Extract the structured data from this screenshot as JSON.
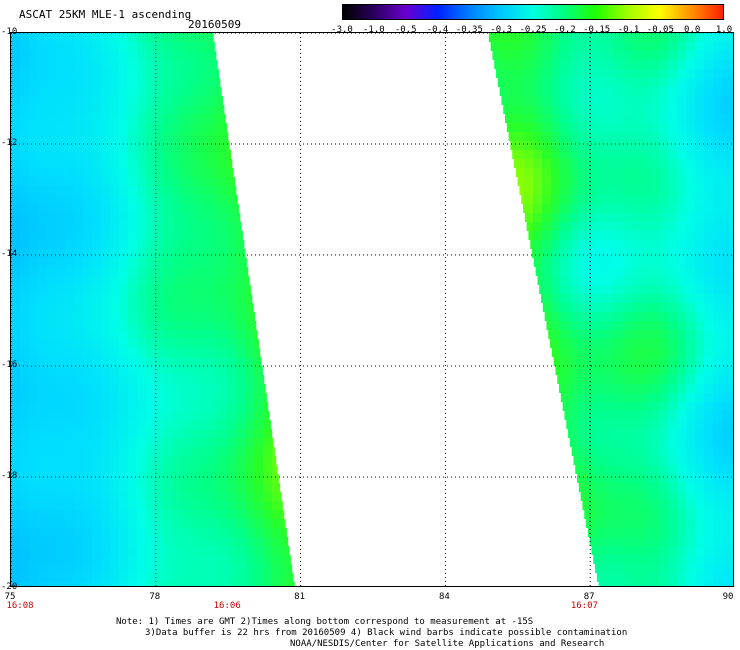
{
  "header": {
    "title": "ASCAT 25KM MLE-1 ascending",
    "date": "20160509"
  },
  "colorbar": {
    "labels": [
      "-3.0",
      "-1.0",
      "-0.5",
      "-0.4",
      "-0.35",
      "-0.3",
      "-0.25",
      "-0.2",
      "-0.15",
      "-0.1",
      "-0.05",
      "0.0",
      "1.0"
    ],
    "colors": [
      "#000000",
      "#2b0060",
      "#6a00d0",
      "#0020ff",
      "#0080ff",
      "#00c8ff",
      "#00ffe0",
      "#00ff80",
      "#20ff00",
      "#a0ff00",
      "#ffff00",
      "#ff9000",
      "#ff2000"
    ]
  },
  "map": {
    "lat_labels": [
      "-10",
      "-12",
      "-14",
      "-16",
      "-18",
      "-20"
    ],
    "lon_labels": [
      "75",
      "78",
      "81",
      "84",
      "87",
      "90"
    ],
    "lat_range": [
      -20,
      -10
    ],
    "lon_range": [
      75,
      90
    ],
    "time_labels": [
      {
        "text": "16:08",
        "lon": 75
      },
      {
        "text": "16:06",
        "lon": 79.5
      },
      {
        "text": "16:07",
        "lon": 86.9
      }
    ],
    "swaths": [
      {
        "name": "west",
        "edge_top_lon": 76.5,
        "edge_bottom_lon": 77.6,
        "lon_west": 75,
        "lon_east_top": 79.2,
        "lon_east_bottom": 80.9
      },
      {
        "name": "east",
        "lon_west_top": 84.9,
        "lon_west_bottom": 87.2,
        "lon_east": 90
      }
    ]
  },
  "notes": {
    "line1": "Note: 1) Times are GMT 2)Times along bottom correspond to measurement at -15S",
    "line2": "3)Data buffer is 22 hrs from 20160509 4) Black wind barbs indicate possible contamination",
    "line3": "NOAA/NESDIS/Center for Satellite Applications and Research"
  }
}
